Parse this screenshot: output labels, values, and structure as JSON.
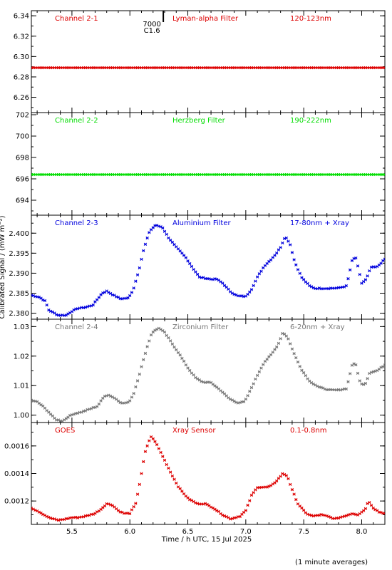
{
  "chart_data": {
    "type": "scatter",
    "xlabel": "Time / h UTC, 15 Jul 2025",
    "ylabel": "Calibrated Signal / (mW m⁻²)",
    "footnote": "(1 minute averages)",
    "xlim": [
      5.15,
      8.2
    ],
    "x_ticks": [
      5.5,
      6.0,
      6.5,
      7.0,
      7.5,
      8.0
    ],
    "x_tick_labels": [
      "5.5",
      "6.0",
      "6.5",
      "7.0",
      "7.5",
      "8.0"
    ],
    "panels": [
      {
        "name": "Channel 2-1",
        "filter": "Lyman-alpha Filter",
        "range": "120-123nm",
        "color": "#dd0000",
        "ylim": [
          6.245,
          6.345
        ],
        "y_ticks": [
          6.26,
          6.28,
          6.3,
          6.32,
          6.34
        ],
        "y_tick_labels": [
          "6.26",
          "6.28",
          "6.30",
          "6.32",
          "6.34"
        ],
        "annotation": {
          "x": 6.19,
          "lines": [
            "7000",
            "C1.6"
          ]
        },
        "profile": [
          [
            5.15,
            6.289
          ],
          [
            8.2,
            6.289
          ]
        ]
      },
      {
        "name": "Channel 2-2",
        "filter": "Herzberg Filter",
        "range": "190-222nm",
        "color": "#00dd00",
        "ylim": [
          692.6,
          702.2
        ],
        "y_ticks": [
          694,
          696,
          698,
          700,
          702
        ],
        "y_tick_labels": [
          "694",
          "696",
          "698",
          "700",
          "702"
        ],
        "profile": [
          [
            5.15,
            696.4
          ],
          [
            8.2,
            696.4
          ]
        ]
      },
      {
        "name": "Channel 2-3",
        "filter": "Aluminium Filter",
        "range": "17-80nm + Xray",
        "color": "#0000dd",
        "ylim": [
          2.3785,
          2.4045
        ],
        "y_ticks": [
          2.38,
          2.385,
          2.39,
          2.395,
          2.4
        ],
        "y_tick_labels": [
          "2.380",
          "2.385",
          "2.390",
          "2.395",
          "2.400"
        ],
        "profile": [
          [
            5.15,
            2.3845
          ],
          [
            5.22,
            2.384
          ],
          [
            5.27,
            2.383
          ],
          [
            5.3,
            2.3808
          ],
          [
            5.38,
            2.3795
          ],
          [
            5.45,
            2.3795
          ],
          [
            5.5,
            2.3805
          ],
          [
            5.55,
            2.3812
          ],
          [
            5.62,
            2.3815
          ],
          [
            5.68,
            2.382
          ],
          [
            5.72,
            2.3835
          ],
          [
            5.76,
            2.385
          ],
          [
            5.8,
            2.3855
          ],
          [
            5.86,
            2.3845
          ],
          [
            5.92,
            2.3836
          ],
          [
            5.99,
            2.3838
          ],
          [
            6.03,
            2.386
          ],
          [
            6.08,
            2.391
          ],
          [
            6.12,
            2.396
          ],
          [
            6.17,
            2.4005
          ],
          [
            6.22,
            2.402
          ],
          [
            6.28,
            2.4015
          ],
          [
            6.33,
            2.399
          ],
          [
            6.4,
            2.3965
          ],
          [
            6.48,
            2.394
          ],
          [
            6.55,
            2.391
          ],
          [
            6.6,
            2.389
          ],
          [
            6.7,
            2.3885
          ],
          [
            6.75,
            2.3885
          ],
          [
            6.8,
            2.3875
          ],
          [
            6.87,
            2.3853
          ],
          [
            6.93,
            2.3843
          ],
          [
            7.0,
            2.3842
          ],
          [
            7.05,
            2.386
          ],
          [
            7.1,
            2.389
          ],
          [
            7.16,
            2.3918
          ],
          [
            7.22,
            2.3935
          ],
          [
            7.27,
            2.3952
          ],
          [
            7.3,
            2.3965
          ],
          [
            7.34,
            2.3992
          ],
          [
            7.38,
            2.3975
          ],
          [
            7.42,
            2.393
          ],
          [
            7.48,
            2.389
          ],
          [
            7.55,
            2.3868
          ],
          [
            7.6,
            2.3862
          ],
          [
            7.7,
            2.3862
          ],
          [
            7.8,
            2.3863
          ],
          [
            7.87,
            2.3868
          ],
          [
            7.92,
            2.3935
          ],
          [
            7.95,
            2.3938
          ],
          [
            8.0,
            2.3875
          ],
          [
            8.04,
            2.3885
          ],
          [
            8.08,
            2.3915
          ],
          [
            8.13,
            2.3915
          ],
          [
            8.2,
            2.3935
          ]
        ]
      },
      {
        "name": "Channel 2-4",
        "filter": "Zirconium Filter",
        "range": "6-20nm + Xray",
        "color": "#777777",
        "ylim": [
          0.9975,
          1.0325
        ],
        "y_ticks": [
          1.0,
          1.01,
          1.02,
          1.03
        ],
        "y_tick_labels": [
          "1.00",
          "1.01",
          "1.02",
          "1.03"
        ],
        "profile": [
          [
            5.15,
            1.005
          ],
          [
            5.2,
            1.0045
          ],
          [
            5.25,
            1.003
          ],
          [
            5.3,
            1.001
          ],
          [
            5.36,
            0.9985
          ],
          [
            5.42,
            0.998
          ],
          [
            5.47,
            0.9995
          ],
          [
            5.52,
            1.0005
          ],
          [
            5.58,
            1.001
          ],
          [
            5.65,
            1.002
          ],
          [
            5.72,
            1.003
          ],
          [
            5.78,
            1.0065
          ],
          [
            5.82,
            1.0068
          ],
          [
            5.88,
            1.0055
          ],
          [
            5.93,
            1.004
          ],
          [
            5.99,
            1.0043
          ],
          [
            6.03,
            1.007
          ],
          [
            6.08,
            1.0135
          ],
          [
            6.14,
            1.022
          ],
          [
            6.19,
            1.028
          ],
          [
            6.25,
            1.0295
          ],
          [
            6.3,
            1.028
          ],
          [
            6.36,
            1.0245
          ],
          [
            6.43,
            1.0205
          ],
          [
            6.5,
            1.016
          ],
          [
            6.57,
            1.0125
          ],
          [
            6.63,
            1.0112
          ],
          [
            6.7,
            1.011
          ],
          [
            6.78,
            1.0085
          ],
          [
            6.86,
            1.0055
          ],
          [
            6.93,
            1.0042
          ],
          [
            6.99,
            1.0045
          ],
          [
            7.04,
            1.0085
          ],
          [
            7.1,
            1.0135
          ],
          [
            7.16,
            1.018
          ],
          [
            7.22,
            1.0205
          ],
          [
            7.28,
            1.024
          ],
          [
            7.32,
            1.028
          ],
          [
            7.36,
            1.0265
          ],
          [
            7.42,
            1.0205
          ],
          [
            7.48,
            1.0155
          ],
          [
            7.55,
            1.0115
          ],
          [
            7.63,
            1.0095
          ],
          [
            7.72,
            1.0085
          ],
          [
            7.8,
            1.0085
          ],
          [
            7.87,
            1.009
          ],
          [
            7.92,
            1.0175
          ],
          [
            7.95,
            1.017
          ],
          [
            7.99,
            1.0105
          ],
          [
            8.03,
            1.0105
          ],
          [
            8.07,
            1.0145
          ],
          [
            8.13,
            1.015
          ],
          [
            8.2,
            1.017
          ]
        ]
      },
      {
        "name": "GOES",
        "filter": "Xray Sensor",
        "range": "0.1-0.8nm",
        "color": "#dd0000",
        "ylim": [
          0.00103,
          0.00177
        ],
        "y_ticks": [
          0.0012,
          0.0014,
          0.0016
        ],
        "y_tick_labels": [
          "0.0012",
          "0.0014",
          "0.0016"
        ],
        "profile": [
          [
            5.15,
            0.00115
          ],
          [
            5.22,
            0.00112
          ],
          [
            5.3,
            0.00108
          ],
          [
            5.38,
            0.00106
          ],
          [
            5.45,
            0.00107
          ],
          [
            5.5,
            0.00108
          ],
          [
            5.55,
            0.00108
          ],
          [
            5.62,
            0.00109
          ],
          [
            5.7,
            0.00111
          ],
          [
            5.75,
            0.00114
          ],
          [
            5.8,
            0.00118
          ],
          [
            5.85,
            0.00117
          ],
          [
            5.9,
            0.00113
          ],
          [
            5.95,
            0.00111
          ],
          [
            6.0,
            0.00111
          ],
          [
            6.05,
            0.00118
          ],
          [
            6.09,
            0.00135
          ],
          [
            6.13,
            0.00155
          ],
          [
            6.18,
            0.00167
          ],
          [
            6.22,
            0.00163
          ],
          [
            6.28,
            0.00153
          ],
          [
            6.35,
            0.00141
          ],
          [
            6.42,
            0.0013
          ],
          [
            6.5,
            0.00122
          ],
          [
            6.58,
            0.00118
          ],
          [
            6.65,
            0.00118
          ],
          [
            6.72,
            0.00115
          ],
          [
            6.8,
            0.0011
          ],
          [
            6.87,
            0.00107
          ],
          [
            6.95,
            0.00109
          ],
          [
            7.0,
            0.00113
          ],
          [
            7.05,
            0.00124
          ],
          [
            7.1,
            0.0013
          ],
          [
            7.18,
            0.0013
          ],
          [
            7.22,
            0.00131
          ],
          [
            7.27,
            0.00135
          ],
          [
            7.32,
            0.0014
          ],
          [
            7.36,
            0.00138
          ],
          [
            7.4,
            0.00128
          ],
          [
            7.45,
            0.00118
          ],
          [
            7.52,
            0.00111
          ],
          [
            7.58,
            0.00109
          ],
          [
            7.65,
            0.0011
          ],
          [
            7.7,
            0.00109
          ],
          [
            7.77,
            0.00107
          ],
          [
            7.85,
            0.00109
          ],
          [
            7.92,
            0.00111
          ],
          [
            7.97,
            0.0011
          ],
          [
            8.03,
            0.00114
          ],
          [
            8.06,
            0.0012
          ],
          [
            8.1,
            0.00115
          ],
          [
            8.15,
            0.00112
          ],
          [
            8.2,
            0.00111
          ]
        ]
      }
    ]
  }
}
